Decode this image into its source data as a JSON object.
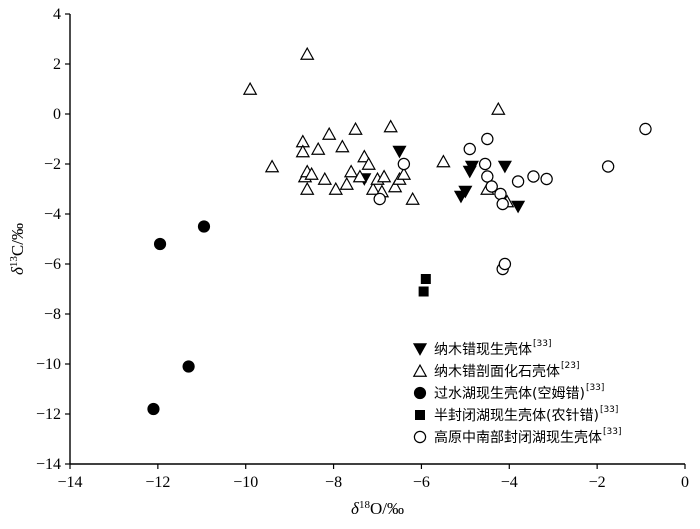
{
  "chart_data": {
    "type": "scatter",
    "xlabel": "δ18O/‰",
    "ylabel": "δ13C/‰",
    "xlim": [
      -14,
      0
    ],
    "ylim": [
      -14,
      4
    ],
    "x_ticks": [
      -14,
      -12,
      -10,
      -8,
      -6,
      -4,
      -2,
      0
    ],
    "y_ticks": [
      4,
      2,
      0,
      -2,
      -4,
      -6,
      -8,
      -10,
      -12,
      -14
    ],
    "grid": false,
    "legend_position": "bottom-right",
    "series": [
      {
        "name": "纳木错现生壳体",
        "ref": "[33]",
        "marker": "triangle-down-filled",
        "color": "#000000",
        "points": [
          [
            -6.5,
            -1.5
          ],
          [
            -7.3,
            -2.6
          ],
          [
            -5.0,
            -3.1
          ],
          [
            -5.1,
            -3.3
          ],
          [
            -4.85,
            -2.1
          ],
          [
            -4.9,
            -2.3
          ],
          [
            -4.1,
            -2.1
          ],
          [
            -3.8,
            -3.7
          ]
        ]
      },
      {
        "name": "纳木错剖面化石壳体",
        "ref": "[23]",
        "marker": "triangle-up-open",
        "color": "#000000",
        "points": [
          [
            -8.6,
            2.4
          ],
          [
            -9.9,
            1.0
          ],
          [
            -9.4,
            -2.1
          ],
          [
            -8.7,
            -1.1
          ],
          [
            -8.7,
            -1.5
          ],
          [
            -8.65,
            -2.5
          ],
          [
            -8.6,
            -2.3
          ],
          [
            -8.6,
            -3.0
          ],
          [
            -8.5,
            -2.4
          ],
          [
            -8.35,
            -1.4
          ],
          [
            -8.2,
            -2.6
          ],
          [
            -8.1,
            -0.8
          ],
          [
            -7.95,
            -3.0
          ],
          [
            -7.8,
            -1.3
          ],
          [
            -7.7,
            -2.8
          ],
          [
            -7.6,
            -2.3
          ],
          [
            -7.5,
            -0.6
          ],
          [
            -7.4,
            -2.5
          ],
          [
            -7.3,
            -1.7
          ],
          [
            -7.2,
            -2.0
          ],
          [
            -7.1,
            -3.0
          ],
          [
            -7.0,
            -2.6
          ],
          [
            -6.9,
            -3.1
          ],
          [
            -6.85,
            -2.5
          ],
          [
            -6.7,
            -0.5
          ],
          [
            -6.6,
            -2.9
          ],
          [
            -6.5,
            -2.6
          ],
          [
            -6.4,
            -2.4
          ],
          [
            -6.2,
            -3.4
          ],
          [
            -5.5,
            -1.9
          ],
          [
            -4.5,
            -3.0
          ],
          [
            -4.25,
            0.2
          ],
          [
            -4.05,
            -3.5
          ]
        ]
      },
      {
        "name": "过水湖现生壳体(空姆错)",
        "ref": "[33]",
        "marker": "circle-filled",
        "color": "#000000",
        "points": [
          [
            -11.95,
            -5.2
          ],
          [
            -10.95,
            -4.5
          ],
          [
            -11.3,
            -10.1
          ],
          [
            -12.1,
            -11.8
          ]
        ]
      },
      {
        "name": "半封闭湖现生壳体(农针错)",
        "ref": "[33]",
        "marker": "square-filled",
        "color": "#000000",
        "points": [
          [
            -5.9,
            -6.6
          ],
          [
            -5.95,
            -7.1
          ]
        ]
      },
      {
        "name": "高原中南部封闭湖现生壳体",
        "ref": "[33]",
        "marker": "circle-open",
        "color": "#000000",
        "points": [
          [
            -6.95,
            -3.4
          ],
          [
            -6.4,
            -2.0
          ],
          [
            -4.9,
            -1.4
          ],
          [
            -4.5,
            -1.0
          ],
          [
            -4.55,
            -2.0
          ],
          [
            -4.5,
            -2.5
          ],
          [
            -4.4,
            -2.9
          ],
          [
            -4.2,
            -3.2
          ],
          [
            -4.15,
            -3.6
          ],
          [
            -4.15,
            -6.2
          ],
          [
            -4.1,
            -6.0
          ],
          [
            -3.8,
            -2.7
          ],
          [
            -3.45,
            -2.5
          ],
          [
            -3.15,
            -2.6
          ],
          [
            -1.75,
            -2.1
          ],
          [
            -0.9,
            -0.6
          ]
        ]
      }
    ]
  }
}
